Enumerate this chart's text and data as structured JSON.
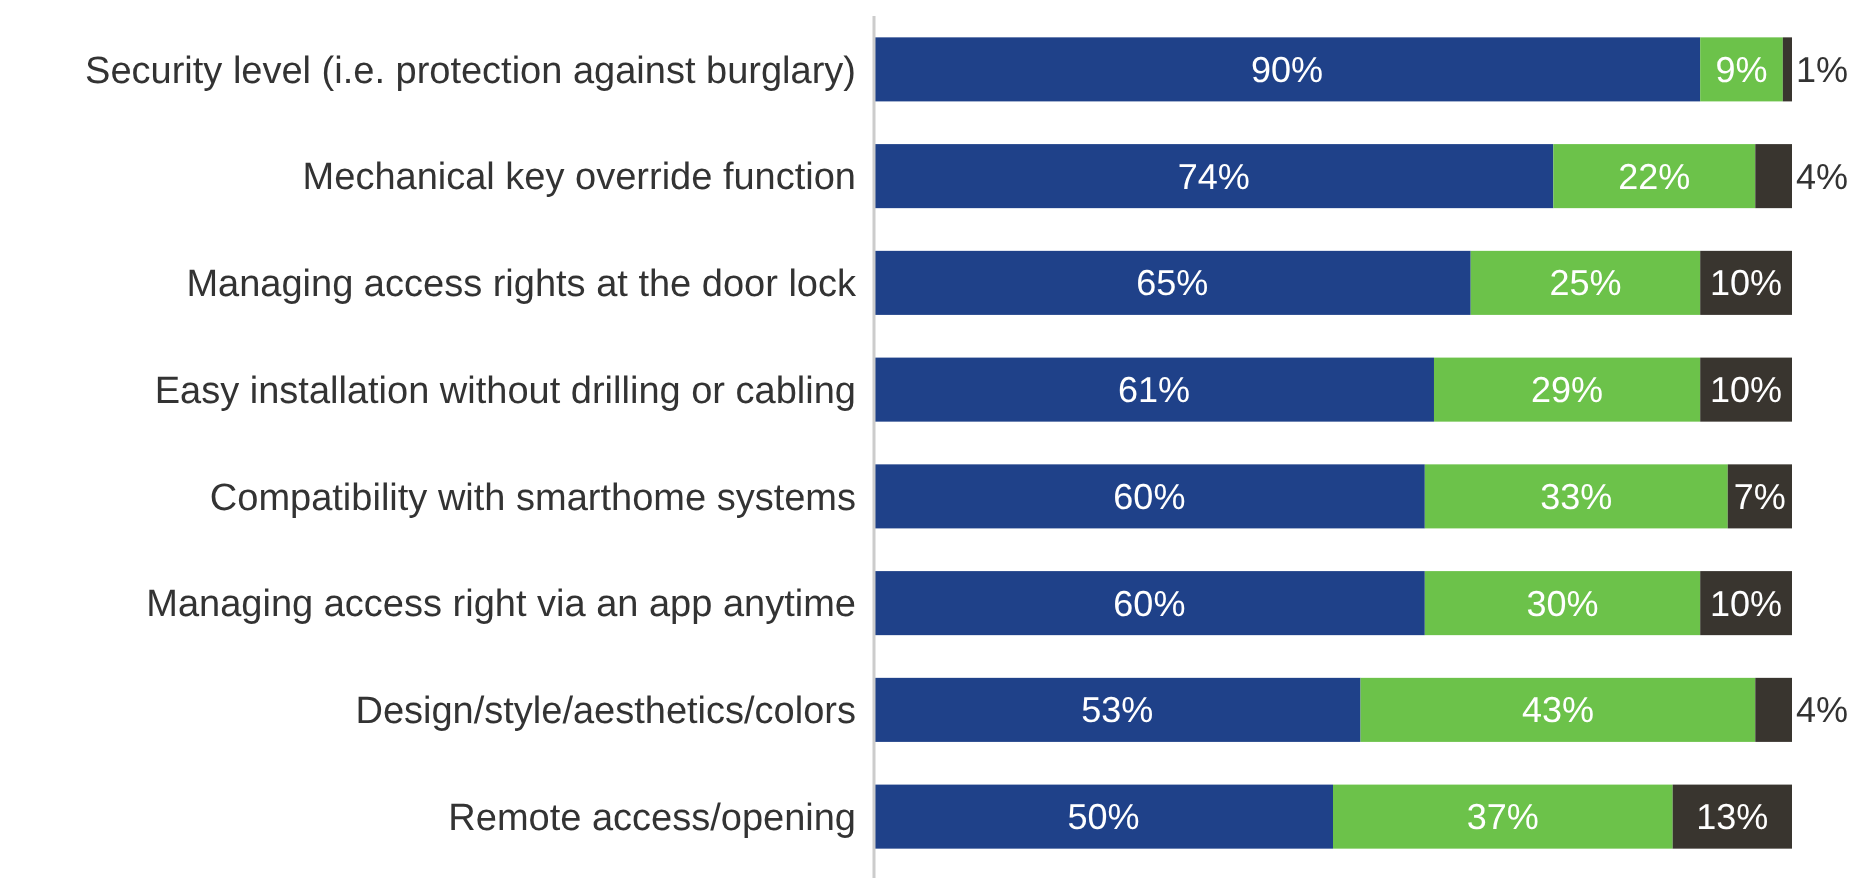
{
  "chart_data": {
    "type": "bar",
    "orientation": "horizontal",
    "stacked": true,
    "tick_labels": "y",
    "categories": [
      "Security level (i.e. protection against burglary)",
      "Mechanical key override function",
      "Managing access rights at the door lock",
      "Easy installation without drilling or cabling",
      "Compatibility with smarthome systems",
      "Managing access right via an app anytime",
      "Design/style/aesthetics/colors",
      "Remote access/opening"
    ],
    "series": [
      {
        "color": "#1f4189",
        "values": [
          90,
          74,
          65,
          61,
          60,
          60,
          53,
          50
        ],
        "value_labels": [
          "90%",
          "74%",
          "65%",
          "61%",
          "60%",
          "60%",
          "53%",
          "50%"
        ]
      },
      {
        "color": "#6cc24a",
        "values": [
          9,
          22,
          25,
          29,
          33,
          30,
          43,
          37
        ],
        "value_labels": [
          "9%",
          "22%",
          "25%",
          "29%",
          "33%",
          "30%",
          "43%",
          "37%"
        ]
      },
      {
        "color": "#39352f",
        "values": [
          1,
          4,
          10,
          10,
          7,
          10,
          4,
          13
        ],
        "value_labels": [
          "1%",
          "4%",
          "10%",
          "10%",
          "7%",
          "10%",
          "4%",
          "13%"
        ]
      }
    ]
  }
}
